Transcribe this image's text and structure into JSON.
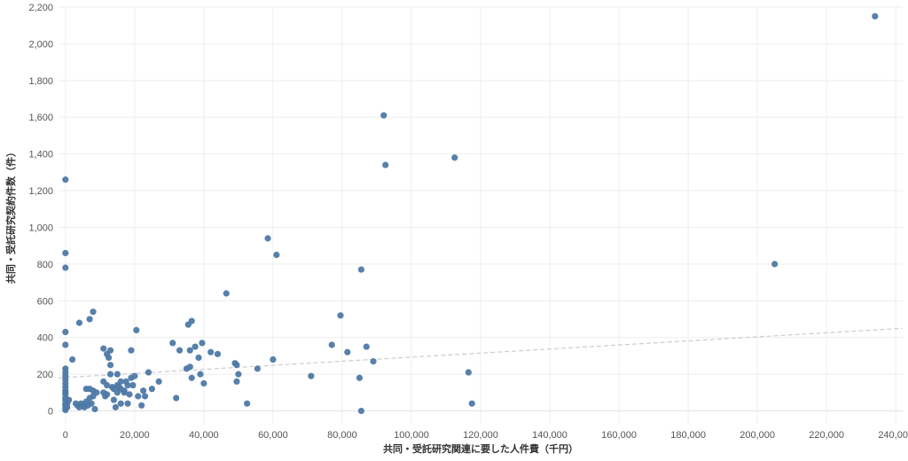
{
  "chart_data": {
    "type": "scatter",
    "xlabel": "共同・受託研究関連に要した人件費（千円）",
    "ylabel": "共同・受託研究契約件数（件）",
    "xlim": [
      -2000,
      242000
    ],
    "ylim": [
      -70,
      2200
    ],
    "x_ticks": [
      0,
      20000,
      40000,
      60000,
      80000,
      100000,
      120000,
      140000,
      160000,
      180000,
      200000,
      220000,
      240000
    ],
    "x_tick_labels": [
      "0",
      "20,000",
      "40,000",
      "60,000",
      "80,000",
      "100,000",
      "120,000",
      "140,000",
      "160,000",
      "180,000",
      "200,000",
      "220,000",
      "240,000"
    ],
    "y_ticks": [
      0,
      200,
      400,
      600,
      800,
      1000,
      1200,
      1400,
      1600,
      1800,
      2000,
      2200
    ],
    "y_tick_labels": [
      "0",
      "200",
      "400",
      "600",
      "800",
      "1,000",
      "1,200",
      "1,400",
      "1,600",
      "1,800",
      "2,000",
      "2,200"
    ],
    "grid": true,
    "point_color": "#4e79a7",
    "trend_color": "#cccccc",
    "trendline": {
      "x": [
        -2000,
        242000
      ],
      "y": [
        180,
        450
      ]
    },
    "points": [
      [
        0,
        1260
      ],
      [
        0,
        860
      ],
      [
        0,
        780
      ],
      [
        0,
        430
      ],
      [
        0,
        360
      ],
      [
        0,
        230
      ],
      [
        0,
        210
      ],
      [
        0,
        190
      ],
      [
        0,
        170
      ],
      [
        0,
        150
      ],
      [
        0,
        130
      ],
      [
        0,
        110
      ],
      [
        0,
        100
      ],
      [
        0,
        90
      ],
      [
        0,
        70
      ],
      [
        0,
        60
      ],
      [
        0,
        40
      ],
      [
        0,
        30
      ],
      [
        0,
        15
      ],
      [
        0,
        5
      ],
      [
        500,
        40
      ],
      [
        500,
        20
      ],
      [
        1000,
        60
      ],
      [
        2000,
        280
      ],
      [
        3000,
        40
      ],
      [
        3500,
        30
      ],
      [
        4000,
        20
      ],
      [
        4000,
        480
      ],
      [
        4500,
        40
      ],
      [
        5000,
        30
      ],
      [
        5500,
        20
      ],
      [
        6000,
        120
      ],
      [
        6000,
        50
      ],
      [
        6500,
        30
      ],
      [
        7000,
        500
      ],
      [
        7000,
        120
      ],
      [
        7000,
        70
      ],
      [
        7500,
        40
      ],
      [
        8000,
        540
      ],
      [
        8000,
        110
      ],
      [
        8000,
        80
      ],
      [
        8500,
        10
      ],
      [
        9000,
        100
      ],
      [
        11000,
        340
      ],
      [
        11000,
        160
      ],
      [
        11000,
        100
      ],
      [
        11500,
        80
      ],
      [
        12000,
        310
      ],
      [
        12000,
        140
      ],
      [
        12000,
        90
      ],
      [
        12500,
        290
      ],
      [
        13000,
        330
      ],
      [
        13000,
        200
      ],
      [
        13000,
        250
      ],
      [
        13500,
        130
      ],
      [
        14000,
        120
      ],
      [
        14000,
        60
      ],
      [
        14500,
        20
      ],
      [
        15000,
        200
      ],
      [
        15000,
        140
      ],
      [
        15000,
        100
      ],
      [
        15500,
        130
      ],
      [
        16000,
        160
      ],
      [
        16000,
        120
      ],
      [
        16000,
        40
      ],
      [
        17000,
        110
      ],
      [
        17000,
        100
      ],
      [
        17500,
        160
      ],
      [
        18000,
        140
      ],
      [
        18000,
        40
      ],
      [
        18500,
        90
      ],
      [
        19000,
        180
      ],
      [
        19000,
        330
      ],
      [
        19500,
        140
      ],
      [
        20000,
        190
      ],
      [
        20500,
        440
      ],
      [
        21000,
        80
      ],
      [
        22000,
        30
      ],
      [
        22500,
        110
      ],
      [
        23000,
        80
      ],
      [
        24000,
        210
      ],
      [
        25000,
        120
      ],
      [
        27000,
        160
      ],
      [
        31000,
        370
      ],
      [
        32000,
        70
      ],
      [
        33000,
        330
      ],
      [
        35000,
        230
      ],
      [
        35500,
        470
      ],
      [
        36000,
        330
      ],
      [
        36000,
        240
      ],
      [
        36500,
        180
      ],
      [
        36500,
        490
      ],
      [
        37500,
        350
      ],
      [
        38500,
        290
      ],
      [
        39000,
        200
      ],
      [
        39500,
        370
      ],
      [
        40000,
        150
      ],
      [
        42000,
        320
      ],
      [
        44000,
        310
      ],
      [
        46500,
        640
      ],
      [
        49000,
        260
      ],
      [
        49500,
        160
      ],
      [
        49500,
        250
      ],
      [
        50000,
        200
      ],
      [
        52500,
        40
      ],
      [
        55500,
        230
      ],
      [
        58500,
        940
      ],
      [
        60000,
        280
      ],
      [
        61000,
        850
      ],
      [
        71000,
        190
      ],
      [
        77000,
        360
      ],
      [
        79500,
        520
      ],
      [
        81500,
        320
      ],
      [
        85000,
        180
      ],
      [
        85500,
        0
      ],
      [
        85500,
        770
      ],
      [
        87000,
        350
      ],
      [
        89000,
        270
      ],
      [
        92000,
        1610
      ],
      [
        92500,
        1340
      ],
      [
        112500,
        1380
      ],
      [
        116500,
        210
      ],
      [
        117500,
        40
      ],
      [
        205000,
        800
      ],
      [
        234000,
        2150
      ]
    ]
  }
}
